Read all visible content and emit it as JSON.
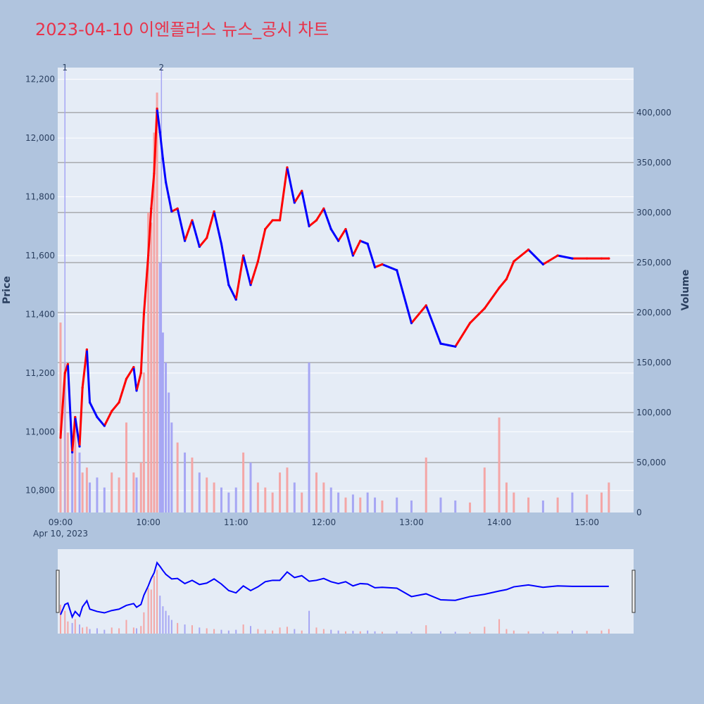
{
  "title": "2023-04-10 이엔플러스 뉴스_공시 차트",
  "chart_data": {
    "type": "line",
    "title": "2023-04-10 이엔플러스 뉴스_공시 차트",
    "subtitle": "",
    "colors": {
      "up": "#ff0000",
      "down": "#0000ff",
      "up_volume": "#f4a6a6",
      "down_volume": "#a6a6f4",
      "plot_bg": "#e5ecf6",
      "page_bg": "#b0c4de"
    },
    "x_axis": {
      "ticks": [
        "09:00",
        "10:00",
        "11:00",
        "12:00",
        "13:00",
        "14:00",
        "15:00"
      ],
      "date_label": "Apr 10, 2023",
      "range": [
        "09:00",
        "15:30"
      ]
    },
    "y_axis": {
      "label": "Price",
      "ticks": [
        "12,200",
        "12,000",
        "11,800",
        "11,600",
        "11,400",
        "11,200",
        "11,000",
        "10,800"
      ],
      "range": [
        10725,
        12240
      ]
    },
    "y2_axis": {
      "label": "Volume",
      "ticks": [
        "400,000",
        "350,000",
        "300,000",
        "250,000",
        "200,000",
        "150,000",
        "100,000",
        "50,000",
        "0"
      ],
      "range": [
        0,
        445000
      ]
    },
    "annotations": [
      {
        "label": "1",
        "time": "09:03"
      },
      {
        "label": "2",
        "time": "10:09"
      }
    ],
    "series": [
      {
        "name": "",
        "type": "price",
        "x": [
          "09:00",
          "09:03",
          "09:05",
          "09:08",
          "09:10",
          "09:13",
          "09:15",
          "09:18",
          "09:20",
          "09:25",
          "09:30",
          "09:35",
          "09:40",
          "09:45",
          "09:50",
          "09:52",
          "09:55",
          "09:57",
          "10:00",
          "10:02",
          "10:04",
          "10:06",
          "10:08",
          "10:10",
          "10:12",
          "10:14",
          "10:16",
          "10:20",
          "10:25",
          "10:30",
          "10:35",
          "10:40",
          "10:45",
          "10:50",
          "10:55",
          "11:00",
          "11:05",
          "11:10",
          "11:15",
          "11:20",
          "11:25",
          "11:30",
          "11:35",
          "11:40",
          "11:45",
          "11:50",
          "11:55",
          "12:00",
          "12:05",
          "12:10",
          "12:15",
          "12:20",
          "12:25",
          "12:30",
          "12:35",
          "12:40",
          "12:50",
          "13:00",
          "13:10",
          "13:20",
          "13:30",
          "13:40",
          "13:50",
          "14:00",
          "14:05",
          "14:10",
          "14:20",
          "14:30",
          "14:40",
          "14:50",
          "15:00",
          "15:10",
          "15:15"
        ],
        "values": [
          10980,
          11200,
          11230,
          10930,
          11050,
          10950,
          11150,
          11280,
          11100,
          11050,
          11020,
          11070,
          11100,
          11180,
          11220,
          11140,
          11200,
          11400,
          11600,
          11760,
          11880,
          12100,
          12020,
          11930,
          11850,
          11800,
          11750,
          11760,
          11650,
          11720,
          11630,
          11660,
          11750,
          11640,
          11500,
          11450,
          11600,
          11500,
          11580,
          11690,
          11720,
          11720,
          11900,
          11780,
          11820,
          11700,
          11720,
          11760,
          11690,
          11650,
          11690,
          11600,
          11650,
          11640,
          11560,
          11570,
          11550,
          11370,
          11430,
          11300,
          11290,
          11370,
          11420,
          11490,
          11520,
          11580,
          11620,
          11570,
          11600,
          11590,
          11590,
          11590,
          11590
        ]
      },
      {
        "name": "",
        "type": "volume",
        "x": [
          "09:00",
          "09:03",
          "09:05",
          "09:08",
          "09:10",
          "09:13",
          "09:15",
          "09:18",
          "09:20",
          "09:25",
          "09:30",
          "09:35",
          "09:40",
          "09:45",
          "09:50",
          "09:52",
          "09:55",
          "09:57",
          "10:00",
          "10:02",
          "10:04",
          "10:06",
          "10:08",
          "10:10",
          "10:12",
          "10:14",
          "10:16",
          "10:20",
          "10:25",
          "10:30",
          "10:35",
          "10:40",
          "10:45",
          "10:50",
          "10:55",
          "11:00",
          "11:05",
          "11:10",
          "11:15",
          "11:20",
          "11:25",
          "11:30",
          "11:35",
          "11:40",
          "11:45",
          "11:50",
          "11:55",
          "12:00",
          "12:05",
          "12:10",
          "12:15",
          "12:20",
          "12:25",
          "12:30",
          "12:35",
          "12:40",
          "12:50",
          "13:00",
          "13:10",
          "13:20",
          "13:30",
          "13:40",
          "13:50",
          "14:00",
          "14:05",
          "14:10",
          "14:20",
          "14:30",
          "14:40",
          "14:50",
          "15:00",
          "15:10",
          "15:15"
        ],
        "values": [
          190000,
          150000,
          80000,
          70000,
          95000,
          60000,
          40000,
          45000,
          30000,
          35000,
          25000,
          40000,
          35000,
          90000,
          40000,
          35000,
          50000,
          140000,
          300000,
          290000,
          380000,
          420000,
          250000,
          180000,
          150000,
          120000,
          90000,
          70000,
          60000,
          55000,
          40000,
          35000,
          30000,
          25000,
          20000,
          25000,
          60000,
          50000,
          30000,
          25000,
          20000,
          40000,
          45000,
          30000,
          20000,
          150000,
          40000,
          30000,
          25000,
          20000,
          15000,
          18000,
          15000,
          20000,
          15000,
          12000,
          15000,
          12000,
          55000,
          15000,
          12000,
          10000,
          45000,
          95000,
          30000,
          20000,
          15000,
          12000,
          15000,
          20000,
          18000,
          20000,
          30000
        ]
      }
    ]
  }
}
